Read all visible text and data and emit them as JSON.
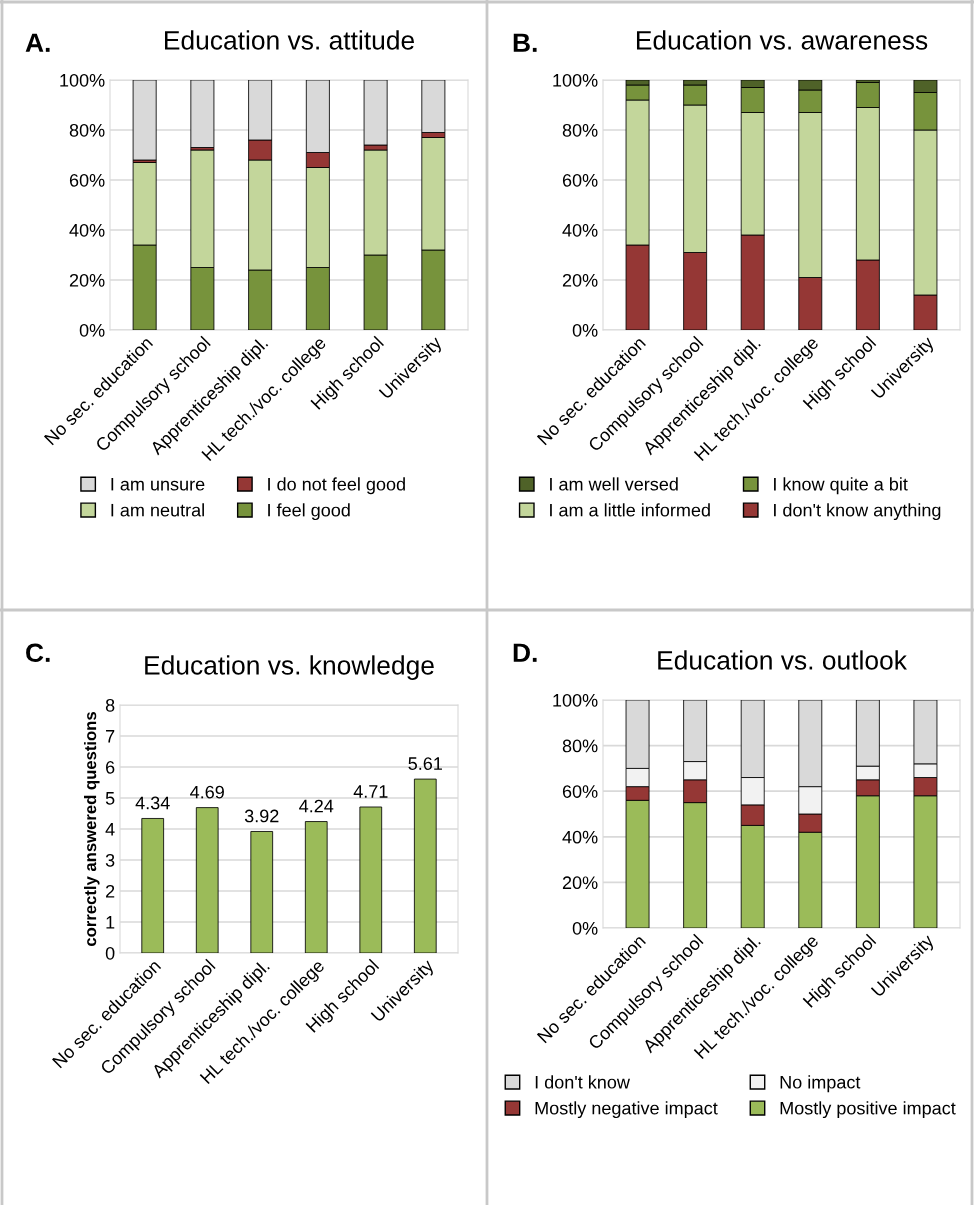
{
  "chart_data": [
    {
      "type": "bar",
      "title": "Education vs. attitude",
      "stacked": true,
      "grid": "y",
      "legend": "bottom",
      "annotations": [
        "A."
      ],
      "categories": [
        "No sec. education",
        "Compulsory school",
        "Apprenticeship dipl.",
        "HL tech./voc. college",
        "High school",
        "University"
      ],
      "series": [
        {
          "name": "I feel good",
          "color": "#77933c",
          "values": [
            34,
            25,
            24,
            25,
            30,
            32
          ]
        },
        {
          "name": "I am neutral",
          "color": "#c3d69b",
          "values": [
            33,
            47,
            44,
            40,
            42,
            45
          ]
        },
        {
          "name": "I do not feel good",
          "color": "#953735",
          "values": [
            1,
            1,
            8,
            6,
            2,
            2
          ]
        },
        {
          "name": "I am unsure",
          "color": "#d9d9d9",
          "values": [
            32,
            27,
            24,
            29,
            26,
            21
          ]
        }
      ],
      "ylim": [
        0,
        100
      ],
      "yticks": [
        {
          "value": 0,
          "label": "0%"
        },
        {
          "value": 20,
          "label": "20%"
        },
        {
          "value": 40,
          "label": "40%"
        },
        {
          "value": 60,
          "label": "60%"
        },
        {
          "value": 80,
          "label": "80%"
        },
        {
          "value": 100,
          "label": "100%"
        }
      ]
    },
    {
      "type": "bar",
      "title": "Education vs. awareness",
      "stacked": true,
      "grid": "y",
      "legend": "bottom",
      "annotations": [
        "B."
      ],
      "categories": [
        "No sec. education",
        "Compulsory school",
        "Apprenticeship dipl.",
        "HL tech./voc. college",
        "High school",
        "University"
      ],
      "series": [
        {
          "name": "I don't know anything",
          "color": "#953735",
          "values": [
            34,
            31,
            38,
            21,
            28,
            14
          ]
        },
        {
          "name": "I am a little informed",
          "color": "#c3d69b",
          "values": [
            58,
            59,
            49,
            66,
            61,
            66
          ]
        },
        {
          "name": "I know quite a bit",
          "color": "#77933c",
          "values": [
            6,
            8,
            10,
            9,
            10,
            15
          ]
        },
        {
          "name": "I am well versed",
          "color": "#4f6228",
          "values": [
            2,
            2,
            3,
            4,
            1,
            5
          ]
        }
      ],
      "ylim": [
        0,
        100
      ],
      "yticks": [
        {
          "value": 0,
          "label": "0%"
        },
        {
          "value": 20,
          "label": "20%"
        },
        {
          "value": 40,
          "label": "40%"
        },
        {
          "value": 60,
          "label": "60%"
        },
        {
          "value": 80,
          "label": "80%"
        },
        {
          "value": 100,
          "label": "100%"
        }
      ]
    },
    {
      "type": "bar",
      "title": "Education vs. knowledge",
      "ylabel": "correctly answered questions",
      "grid": "y",
      "data_labels": true,
      "annotations": [
        "C."
      ],
      "categories": [
        "No sec. education",
        "Compulsory school",
        "Apprenticeship dipl.",
        "HL tech./voc. college",
        "High school",
        "University"
      ],
      "series": [
        {
          "color": "#9bbb59",
          "values": [
            4.34,
            4.69,
            3.92,
            4.24,
            4.71,
            5.61
          ]
        }
      ],
      "ylim": [
        0,
        8
      ],
      "yticks": [
        0,
        1,
        2,
        3,
        4,
        5,
        6,
        7,
        8
      ]
    },
    {
      "type": "bar",
      "title": "Education vs. outlook",
      "stacked": true,
      "grid": "y",
      "legend": "bottom",
      "annotations": [
        "D."
      ],
      "categories": [
        "No sec. education",
        "Compulsory school",
        "Apprenticeship dipl.",
        "HL tech./voc. college",
        "High school",
        "University"
      ],
      "series": [
        {
          "name": "Mostly positive impact",
          "color": "#9bbb59",
          "values": [
            56,
            55,
            45,
            42,
            58,
            58
          ]
        },
        {
          "name": "Mostly negative impact",
          "color": "#953735",
          "values": [
            6,
            10,
            9,
            8,
            7,
            8
          ]
        },
        {
          "name": "No impact",
          "color": "#f2f2f2",
          "values": [
            8,
            8,
            12,
            12,
            6,
            6
          ]
        },
        {
          "name": "I don't know",
          "color": "#d9d9d9",
          "values": [
            30,
            27,
            34,
            38,
            29,
            28
          ]
        }
      ],
      "ylim": [
        0,
        100
      ],
      "yticks": [
        {
          "value": 0,
          "label": "0%"
        },
        {
          "value": 20,
          "label": "20%"
        },
        {
          "value": 40,
          "label": "40%"
        },
        {
          "value": 60,
          "label": "60%"
        },
        {
          "value": 80,
          "label": "80%"
        },
        {
          "value": 100,
          "label": "100%"
        }
      ]
    }
  ]
}
